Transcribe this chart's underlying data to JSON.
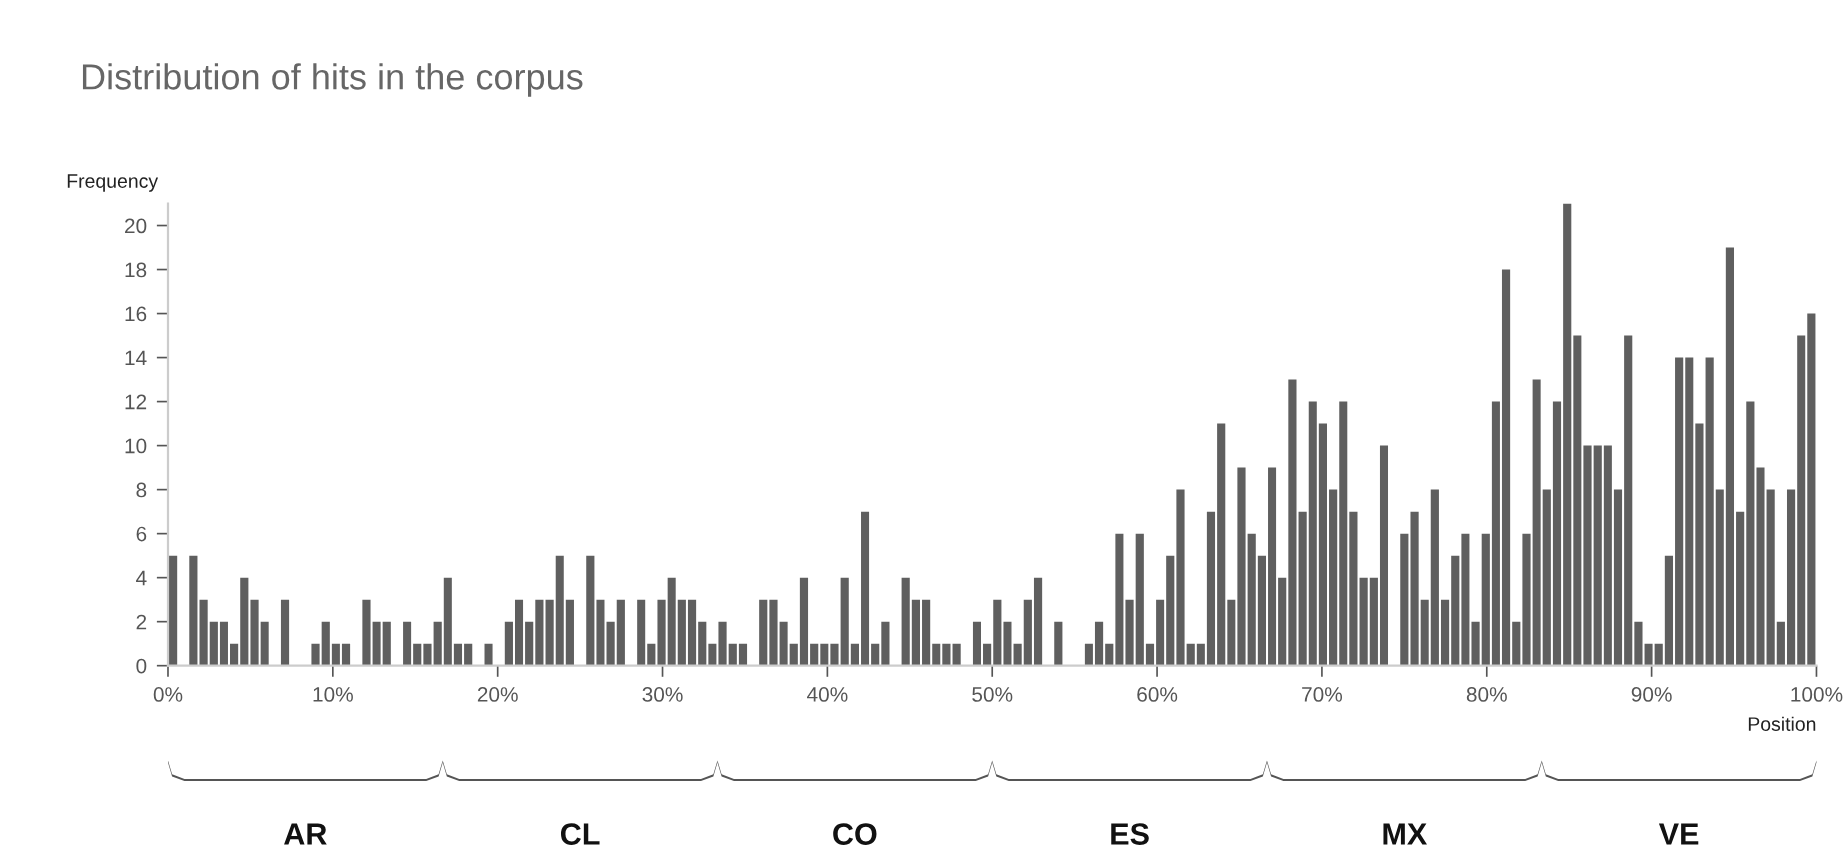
{
  "chart_data": {
    "type": "histogram",
    "title": "Distribution of hits in the corpus",
    "xlabel": "Position",
    "ylabel": "Frequency",
    "bins": [
      0,
      0.62,
      1.23,
      1.85,
      2.47,
      3.09,
      3.7,
      4.32,
      4.94,
      5.56,
      6.17,
      6.79,
      7.41,
      8.02,
      8.64,
      9.26,
      9.88,
      10.49,
      11.11,
      11.73,
      12.35,
      12.96,
      13.58,
      14.2,
      14.81,
      15.43,
      16.05,
      16.67,
      17.28,
      17.9,
      18.52,
      19.14,
      19.75,
      20.37,
      20.99,
      21.6,
      22.22,
      22.84,
      23.46,
      24.07,
      24.69,
      25.31,
      25.93,
      26.54,
      27.16,
      27.78,
      28.4,
      29.01,
      29.63,
      30.25,
      30.86,
      31.48,
      32.1,
      32.72,
      33.33,
      33.95,
      34.57,
      35.19,
      35.8,
      36.42,
      37.04,
      37.65,
      38.27,
      38.89,
      39.51,
      40.12,
      40.74,
      41.36,
      41.98,
      42.59,
      43.21,
      43.83,
      44.44,
      45.06,
      45.68,
      46.3,
      46.91,
      47.53,
      48.15,
      48.77,
      49.38,
      50,
      50.62,
      51.23,
      51.85,
      52.47,
      53.09,
      53.7,
      54.32,
      54.94,
      55.56,
      56.17,
      56.79,
      57.41,
      58.02,
      58.64,
      59.26,
      59.88,
      60.49,
      61.11,
      61.73,
      62.35,
      62.96,
      63.58,
      64.2,
      64.81,
      65.43,
      66.05,
      66.67,
      67.28,
      67.9,
      68.52,
      69.14,
      69.75,
      70.37,
      70.99,
      71.6,
      72.22,
      72.84,
      73.46,
      74.07,
      74.69,
      75.31,
      75.93,
      76.54,
      77.16,
      77.78,
      78.4,
      79.01,
      79.63,
      80.25,
      80.86,
      81.48,
      82.1,
      82.72,
      83.33,
      83.95,
      84.57,
      85.19,
      85.8,
      86.42,
      87.04,
      87.65,
      88.27,
      88.89,
      89.51,
      90.12,
      90.74,
      91.36,
      91.98,
      92.59,
      93.21,
      93.83,
      94.44,
      95.06,
      95.68,
      96.3,
      96.91,
      97.53,
      98.15,
      98.77,
      99.38,
      100
    ],
    "values": [
      5,
      0,
      5,
      3,
      2,
      2,
      1,
      4,
      3,
      2,
      0,
      3,
      0,
      0,
      1,
      2,
      1,
      1,
      0,
      3,
      2,
      2,
      0,
      2,
      1,
      1,
      2,
      4,
      1,
      1,
      0,
      1,
      0,
      2,
      3,
      2,
      3,
      3,
      5,
      3,
      0,
      5,
      3,
      2,
      3,
      0,
      3,
      1,
      3,
      4,
      3,
      3,
      2,
      1,
      2,
      1,
      1,
      0,
      3,
      3,
      2,
      1,
      4,
      1,
      1,
      1,
      4,
      1,
      7,
      1,
      2,
      0,
      4,
      3,
      3,
      1,
      1,
      1,
      0,
      2,
      1,
      3,
      2,
      1,
      3,
      4,
      0,
      2,
      0,
      0,
      1,
      2,
      1,
      6,
      3,
      6,
      1,
      3,
      5,
      8,
      1,
      1,
      7,
      11,
      3,
      9,
      6,
      5,
      9,
      4,
      13,
      7,
      12,
      11,
      8,
      12,
      7,
      4,
      4,
      10,
      0,
      6,
      7,
      3,
      8,
      3,
      5,
      6,
      2,
      6,
      12,
      18,
      2,
      6,
      13,
      8,
      12,
      21,
      15,
      10,
      10,
      10,
      8,
      15,
      2,
      1,
      1,
      5,
      14,
      14,
      11,
      14,
      8,
      19,
      7,
      12,
      9,
      8,
      2,
      8,
      15,
      16
    ],
    "color": "#5f5f5f",
    "xlim": [
      0,
      100
    ],
    "xticks": [
      {
        "value": 0,
        "label": "0%"
      },
      {
        "value": 10,
        "label": "10%"
      },
      {
        "value": 20,
        "label": "20%"
      },
      {
        "value": 30,
        "label": "30%"
      },
      {
        "value": 40,
        "label": "40%"
      },
      {
        "value": 50,
        "label": "50%"
      },
      {
        "value": 60,
        "label": "60%"
      },
      {
        "value": 70,
        "label": "70%"
      },
      {
        "value": 80,
        "label": "80%"
      },
      {
        "value": 90,
        "label": "90%"
      },
      {
        "value": 100,
        "label": "100%"
      }
    ],
    "ylim": [
      0,
      21
    ],
    "yticks": [
      0,
      2,
      4,
      6,
      8,
      10,
      12,
      14,
      16,
      18,
      20
    ],
    "grid": false,
    "annotations": [
      "AR",
      "CL",
      "CO",
      "ES",
      "MX",
      "VE"
    ]
  }
}
